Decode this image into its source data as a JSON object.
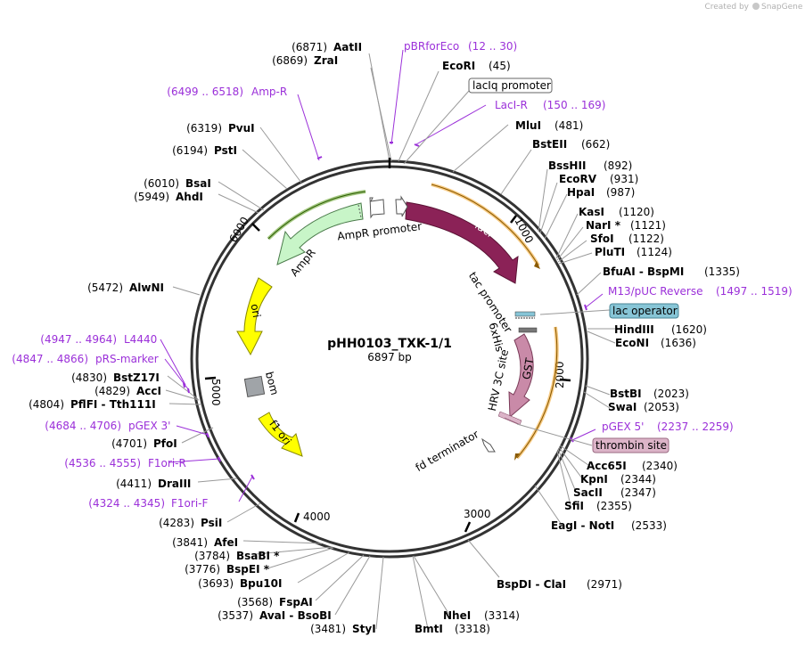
{
  "watermark": {
    "prefix": "Created by",
    "brand": "SnapGene"
  },
  "plasmid": {
    "name": "pHH0103_TXK-1/1",
    "size_label": "6897 bp"
  },
  "ticks": [
    "1000",
    "2000",
    "3000",
    "4000",
    "5000",
    "6000"
  ],
  "sites": [
    {
      "name": "AatII",
      "pos": "(6871)"
    },
    {
      "name": "ZraI",
      "pos": "(6869)"
    },
    {
      "name": "EcoRI",
      "pos": "(45)"
    },
    {
      "name": "MluI",
      "pos": "(481)"
    },
    {
      "name": "BstEII",
      "pos": "(662)"
    },
    {
      "name": "BssHII",
      "pos": "(892)"
    },
    {
      "name": "EcoRV",
      "pos": "(931)"
    },
    {
      "name": "HpaI",
      "pos": "(987)"
    },
    {
      "name": "KasI",
      "pos": "(1120)"
    },
    {
      "name": "NarI *",
      "pos": "(1121)"
    },
    {
      "name": "SfoI",
      "pos": "(1122)"
    },
    {
      "name": "PluTI",
      "pos": "(1124)"
    },
    {
      "name": "BfuAI  -  BspMI",
      "pos": "(1335)"
    },
    {
      "name": "HindIII",
      "pos": "(1620)"
    },
    {
      "name": "EcoNI",
      "pos": "(1636)"
    },
    {
      "name": "BstBI",
      "pos": "(2023)"
    },
    {
      "name": "SwaI",
      "pos": "(2053)"
    },
    {
      "name": "Acc65I",
      "pos": "(2340)"
    },
    {
      "name": "KpnI",
      "pos": "(2344)"
    },
    {
      "name": "SacII",
      "pos": "(2347)"
    },
    {
      "name": "SfiI",
      "pos": "(2355)"
    },
    {
      "name": "EagI  -  NotI",
      "pos": "(2533)"
    },
    {
      "name": "BspDI  -  ClaI",
      "pos": "(2971)"
    },
    {
      "name": "NheI",
      "pos": "(3314)"
    },
    {
      "name": "BmtI",
      "pos": "(3318)"
    },
    {
      "name": "StyI",
      "pos": "(3481)"
    },
    {
      "name": "AvaI  -  BsoBI",
      "pos": "(3537)"
    },
    {
      "name": "FspAI",
      "pos": "(3568)"
    },
    {
      "name": "Bpu10I",
      "pos": "(3693)"
    },
    {
      "name": "BspEI *",
      "pos": "(3776)"
    },
    {
      "name": "BsaBI *",
      "pos": "(3784)"
    },
    {
      "name": "AfeI",
      "pos": "(3841)"
    },
    {
      "name": "PsiI",
      "pos": "(4283)"
    },
    {
      "name": "DraIII",
      "pos": "(4411)"
    },
    {
      "name": "PfoI",
      "pos": "(4701)"
    },
    {
      "name": "PflFI  -  Tth111I",
      "pos": "(4804)"
    },
    {
      "name": "AccI",
      "pos": "(4829)"
    },
    {
      "name": "BstZ17I",
      "pos": "(4830)"
    },
    {
      "name": "AlwNI",
      "pos": "(5472)"
    },
    {
      "name": "AhdI",
      "pos": "(5949)"
    },
    {
      "name": "BsaI",
      "pos": "(6010)"
    },
    {
      "name": "PstI",
      "pos": "(6194)"
    },
    {
      "name": "PvuI",
      "pos": "(6319)"
    }
  ],
  "primers": [
    {
      "name": "pBRforEco",
      "range": "(12 .. 30)"
    },
    {
      "name": "LacI-R",
      "range": "(150 .. 169)"
    },
    {
      "name": "Amp-R",
      "range": "(6499 .. 6518)"
    },
    {
      "name": "M13/pUC Reverse",
      "range": "(1497 .. 1519)"
    },
    {
      "name": "pGEX 5'",
      "range": "(2237 .. 2259)"
    },
    {
      "name": "L4440",
      "range": "(4947 .. 4964)"
    },
    {
      "name": "pRS-marker",
      "range": "(4847 .. 4866)"
    },
    {
      "name": "pGEX 3'",
      "range": "(4684 .. 4706)"
    },
    {
      "name": "F1ori-R",
      "range": "(4536 .. 4555)"
    },
    {
      "name": "F1ori-F",
      "range": "(4324 .. 4345)"
    }
  ],
  "features": {
    "lacIq_promoter": "lacIq promoter",
    "lac_operator": "lac operator",
    "thrombin_site": "thrombin site",
    "lacI": "lacI",
    "tac_promoter": "tac promoter",
    "his6": "6xHis",
    "hrv3c": "HRV 3C site",
    "gst": "GST",
    "fd_terminator": "fd terminator",
    "ampr": "AmpR",
    "ampr_promoter": "AmpR promoter",
    "ori": "ori",
    "bom": "bom",
    "f1_ori": "f1 ori"
  },
  "colors": {
    "backbone": "#333333",
    "primer": "#9b30d9",
    "lacI": "#8b2257",
    "gst": "#c98aa8",
    "orf_highlight": "#f0a020",
    "ampr_fill": "#c8f5c8",
    "ampr_highlight": "#5a9a1a",
    "ori_fill": "#ffff00",
    "bom_fill": "#a0a4a8",
    "lac_operator_fill": "#87c5d6",
    "thrombin_fill": "#dcb4c8"
  }
}
